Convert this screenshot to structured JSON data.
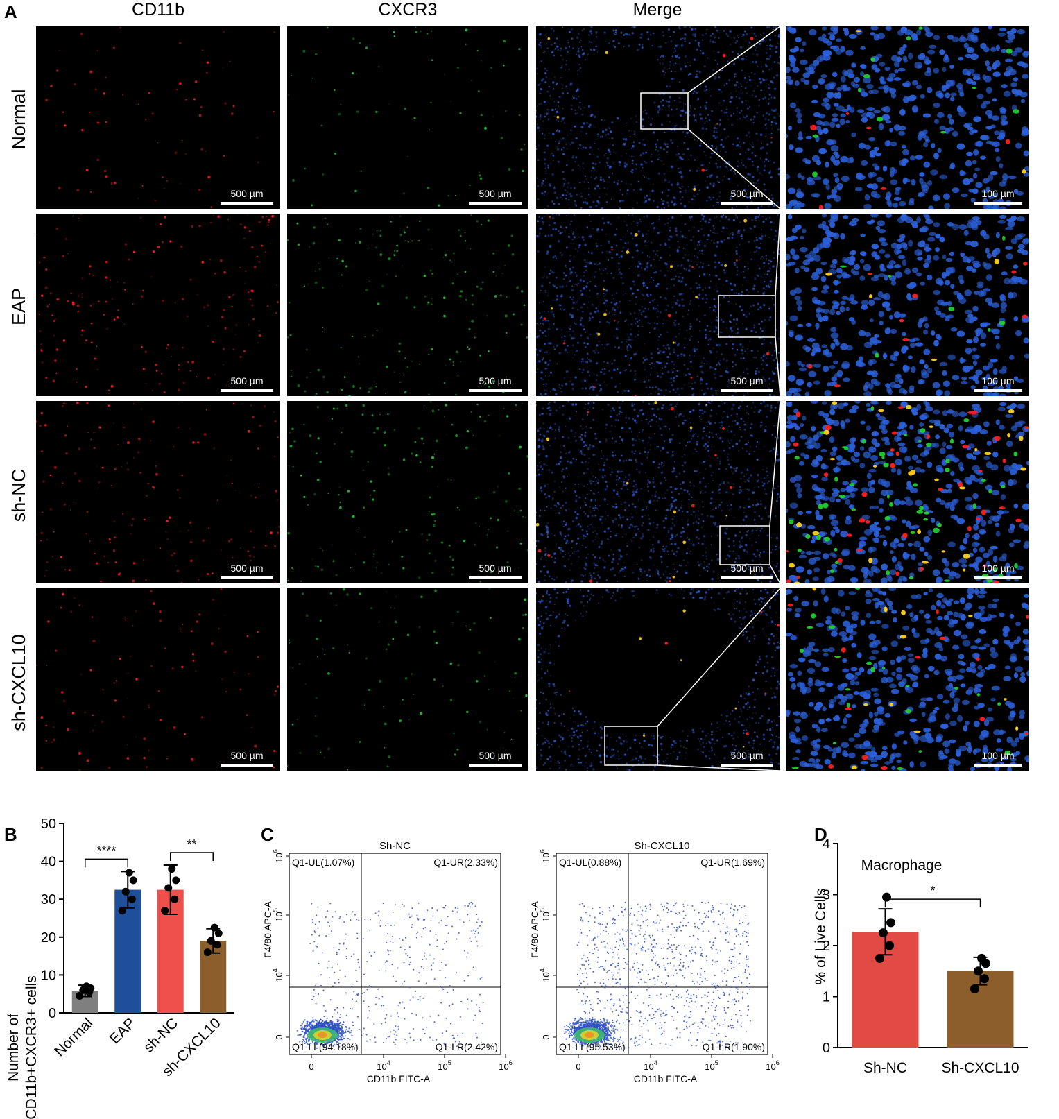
{
  "panel_a": {
    "letter": "A",
    "columns": [
      "CD11b",
      "CXCR3",
      "Merge"
    ],
    "rows": [
      {
        "label": "Normal",
        "scales": [
          "500 µm",
          "500 µm",
          "500 µm",
          "100 µm"
        ]
      },
      {
        "label": "EAP",
        "scales": [
          "500 µm",
          "500 µm",
          "500 µm",
          "100 µm"
        ]
      },
      {
        "label": "sh-NC",
        "scales": [
          "500 µm",
          "500 µm",
          "500 µm",
          "100 µm"
        ]
      },
      {
        "label": "sh-CXCL10",
        "scales": [
          "500 µm",
          "500 µm",
          "500 µm",
          "100 µm"
        ]
      }
    ],
    "colors": {
      "cd11b": "#ff2020",
      "cxcr3": "#22cc33",
      "dapi": "#2b5fd6",
      "merge": "#ffd21f"
    }
  },
  "panel_b": {
    "letter": "B",
    "ylabel_line1": "Number of",
    "ylabel_line2": "CD11b+CXCR3+ cells",
    "chart_data": {
      "type": "bar",
      "categories": [
        "Normal",
        "EAP",
        "sh-NC",
        "sh-CXCL10"
      ],
      "values": [
        5.8,
        32.5,
        32.5,
        19.0
      ],
      "errors": [
        1.5,
        4.8,
        6.5,
        3.2
      ],
      "points": [
        [
          4.5,
          5.5,
          6.0,
          6.5,
          7.0
        ],
        [
          27.0,
          30.0,
          32.0,
          35.0,
          37.0
        ],
        [
          27.0,
          30.0,
          33.0,
          35.0,
          38.0
        ],
        [
          16.0,
          18.0,
          19.0,
          21.0,
          22.5
        ]
      ],
      "colors": [
        "#7f7f7f",
        "#1f4e9a",
        "#f0504c",
        "#8b5e2b"
      ],
      "ylim": [
        0,
        50
      ],
      "yticks": [
        0,
        10,
        20,
        30,
        40,
        50
      ],
      "significance": [
        {
          "from": 0,
          "to": 1,
          "label": "****"
        },
        {
          "from": 2,
          "to": 3,
          "label": "**"
        }
      ]
    }
  },
  "panel_c": {
    "letter": "C",
    "plots": [
      {
        "title": "Sh-NC",
        "ul": "Q1-UL(1.07%)",
        "ur": "Q1-UR(2.33%)",
        "ll": "Q1-LL(94.18%)",
        "lr": "Q1-LR(2.42%)",
        "xlabel": "CD11b FITC-A",
        "ylabel": "F4/80 APC-A"
      },
      {
        "title": "Sh-CXCL10",
        "ul": "Q1-UL(0.88%)",
        "ur": "Q1-UR(1.69%)",
        "ll": "Q1-LL(95.53%)",
        "lr": "Q1-LR(1.90%)",
        "xlabel": "CD11b FITC-A",
        "ylabel": "F4/80 APC-A"
      }
    ],
    "x_ticks": [
      "0",
      "10",
      "10",
      "10"
    ],
    "x_exps": [
      "",
      "4",
      "5",
      "6"
    ],
    "y_ticks": [
      "0",
      "10",
      "10",
      "10"
    ],
    "y_exps": [
      "",
      "4",
      "5",
      "6"
    ],
    "dot_color": "#2e4fc0"
  },
  "panel_d": {
    "letter": "D",
    "ylabel": "% of Live Cells",
    "chart_data": {
      "type": "bar",
      "title": "Macrophage",
      "categories": [
        "Sh-NC",
        "Sh-CXCL10"
      ],
      "values": [
        2.27,
        1.5
      ],
      "errors": [
        0.45,
        0.27
      ],
      "points": [
        [
          1.75,
          2.0,
          2.25,
          2.45,
          2.95
        ],
        [
          1.15,
          1.35,
          1.5,
          1.65,
          1.75
        ]
      ],
      "colors": [
        "#e24a45",
        "#8b5e2b"
      ],
      "ylim": [
        0,
        4
      ],
      "yticks": [
        0,
        1,
        2,
        3,
        4
      ],
      "significance": [
        {
          "from": 0,
          "to": 1,
          "label": "*"
        }
      ]
    }
  }
}
